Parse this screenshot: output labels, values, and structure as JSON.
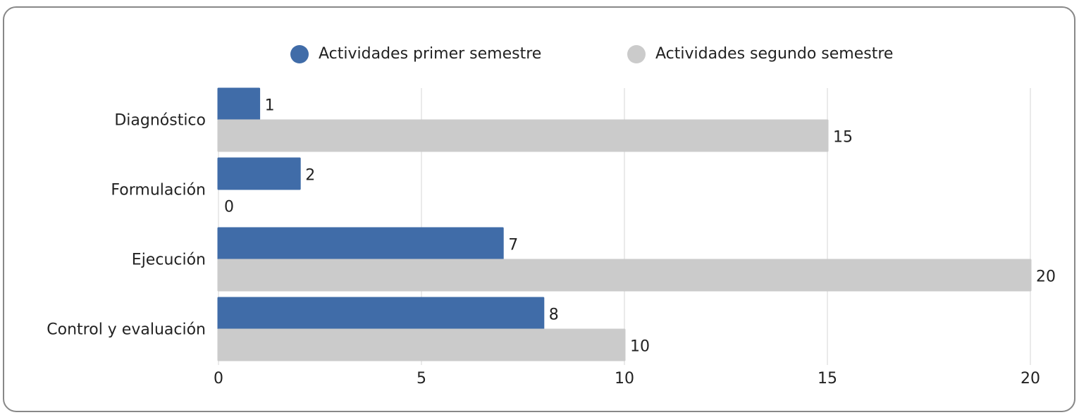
{
  "chart_data": {
    "type": "hbar",
    "categories": [
      "Diagnóstico",
      "Formulación",
      "Ejecución",
      "Control y evaluación"
    ],
    "series": [
      {
        "name": "Actividades primer semestre",
        "color": "#406ca8",
        "values": [
          1,
          2,
          7,
          8
        ]
      },
      {
        "name": "Actividades segundo semestre",
        "color": "#cbcbcb",
        "values": [
          15,
          0,
          20,
          10
        ]
      }
    ],
    "xlim": [
      0,
      20
    ],
    "xticks": [
      0,
      5,
      10,
      15,
      20
    ],
    "grid": true,
    "legend": "top"
  }
}
